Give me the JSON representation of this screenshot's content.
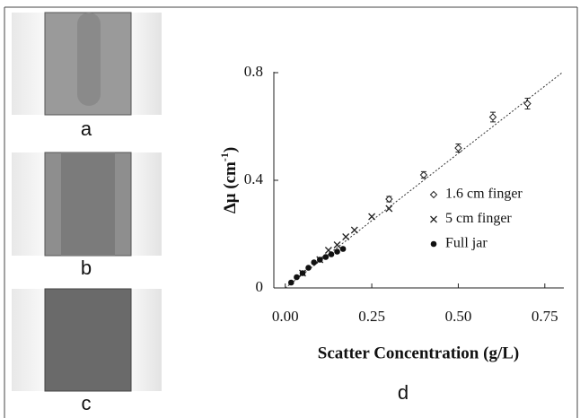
{
  "panels": {
    "labels": [
      "a",
      "b",
      "c",
      "d"
    ]
  },
  "chart_data": {
    "type": "scatter",
    "x_label": "Scatter Concentration (g/L)",
    "y_label": {
      "text": "Δμ (cm",
      "sup": "-1",
      "end": ")"
    },
    "xlim": [
      -0.033,
      0.805
    ],
    "ylim": [
      0,
      0.8
    ],
    "xticks": [
      {
        "value": 0,
        "label": "0.00"
      },
      {
        "value": 0.25,
        "label": "0.25"
      },
      {
        "value": 0.5,
        "label": "0.50"
      },
      {
        "value": 0.75,
        "label": "0.75"
      }
    ],
    "yticks": [
      0,
      0.4,
      0.8
    ],
    "fit_line": {
      "x": [
        0,
        0.8
      ],
      "values": [
        0,
        0.8
      ]
    },
    "series": [
      {
        "name": "1.6 cm finger",
        "marker": "diamond",
        "color": "#222",
        "x": [
          0.3,
          0.4,
          0.5,
          0.6,
          0.7
        ],
        "values": [
          0.33,
          0.42,
          0.52,
          0.635,
          0.685
        ],
        "errors": [
          0.01,
          0.012,
          0.015,
          0.018,
          0.02
        ]
      },
      {
        "name": "5 cm finger",
        "marker": "x",
        "color": "#222",
        "x": [
          0.05,
          0.1,
          0.125,
          0.15,
          0.175,
          0.2,
          0.25,
          0.3
        ],
        "values": [
          0.055,
          0.105,
          0.14,
          0.16,
          0.19,
          0.215,
          0.265,
          0.295
        ]
      },
      {
        "name": "Full jar",
        "marker": "circle",
        "color": "#111",
        "x": [
          0.017,
          0.033,
          0.05,
          0.067,
          0.083,
          0.1,
          0.117,
          0.133,
          0.15,
          0.167
        ],
        "values": [
          0.02,
          0.04,
          0.055,
          0.075,
          0.095,
          0.105,
          0.115,
          0.125,
          0.135,
          0.145
        ]
      }
    ]
  }
}
